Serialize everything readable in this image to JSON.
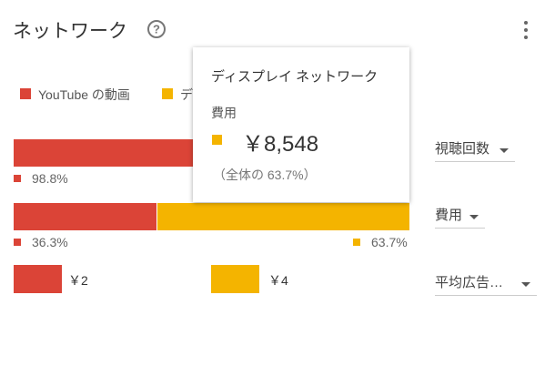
{
  "header": {
    "title": "ネットワーク"
  },
  "legend": [
    {
      "name": "YouTube の動画",
      "color": "#db4437"
    },
    {
      "name": "ディスプレイ ネットワーク",
      "color": "#f4b400"
    }
  ],
  "rows": [
    {
      "metric": "視聴回数",
      "segments": [
        {
          "value": 98.8,
          "value_label": "98.8%"
        }
      ]
    },
    {
      "metric": "費用",
      "segments": [
        {
          "value": 36.3,
          "value_label": "36.3%"
        },
        {
          "value": 63.7,
          "value_label": "63.7%"
        }
      ]
    },
    {
      "metric": "平均広告…",
      "segments": [
        {
          "value": 2,
          "value_label": "￥2"
        },
        {
          "value": 4,
          "value_label": "￥4"
        }
      ]
    }
  ],
  "tooltip": {
    "title": "ディスプレイ ネットワーク",
    "metric": "費用",
    "value": "￥8,548",
    "share": "（全体の 63.7%）"
  }
}
